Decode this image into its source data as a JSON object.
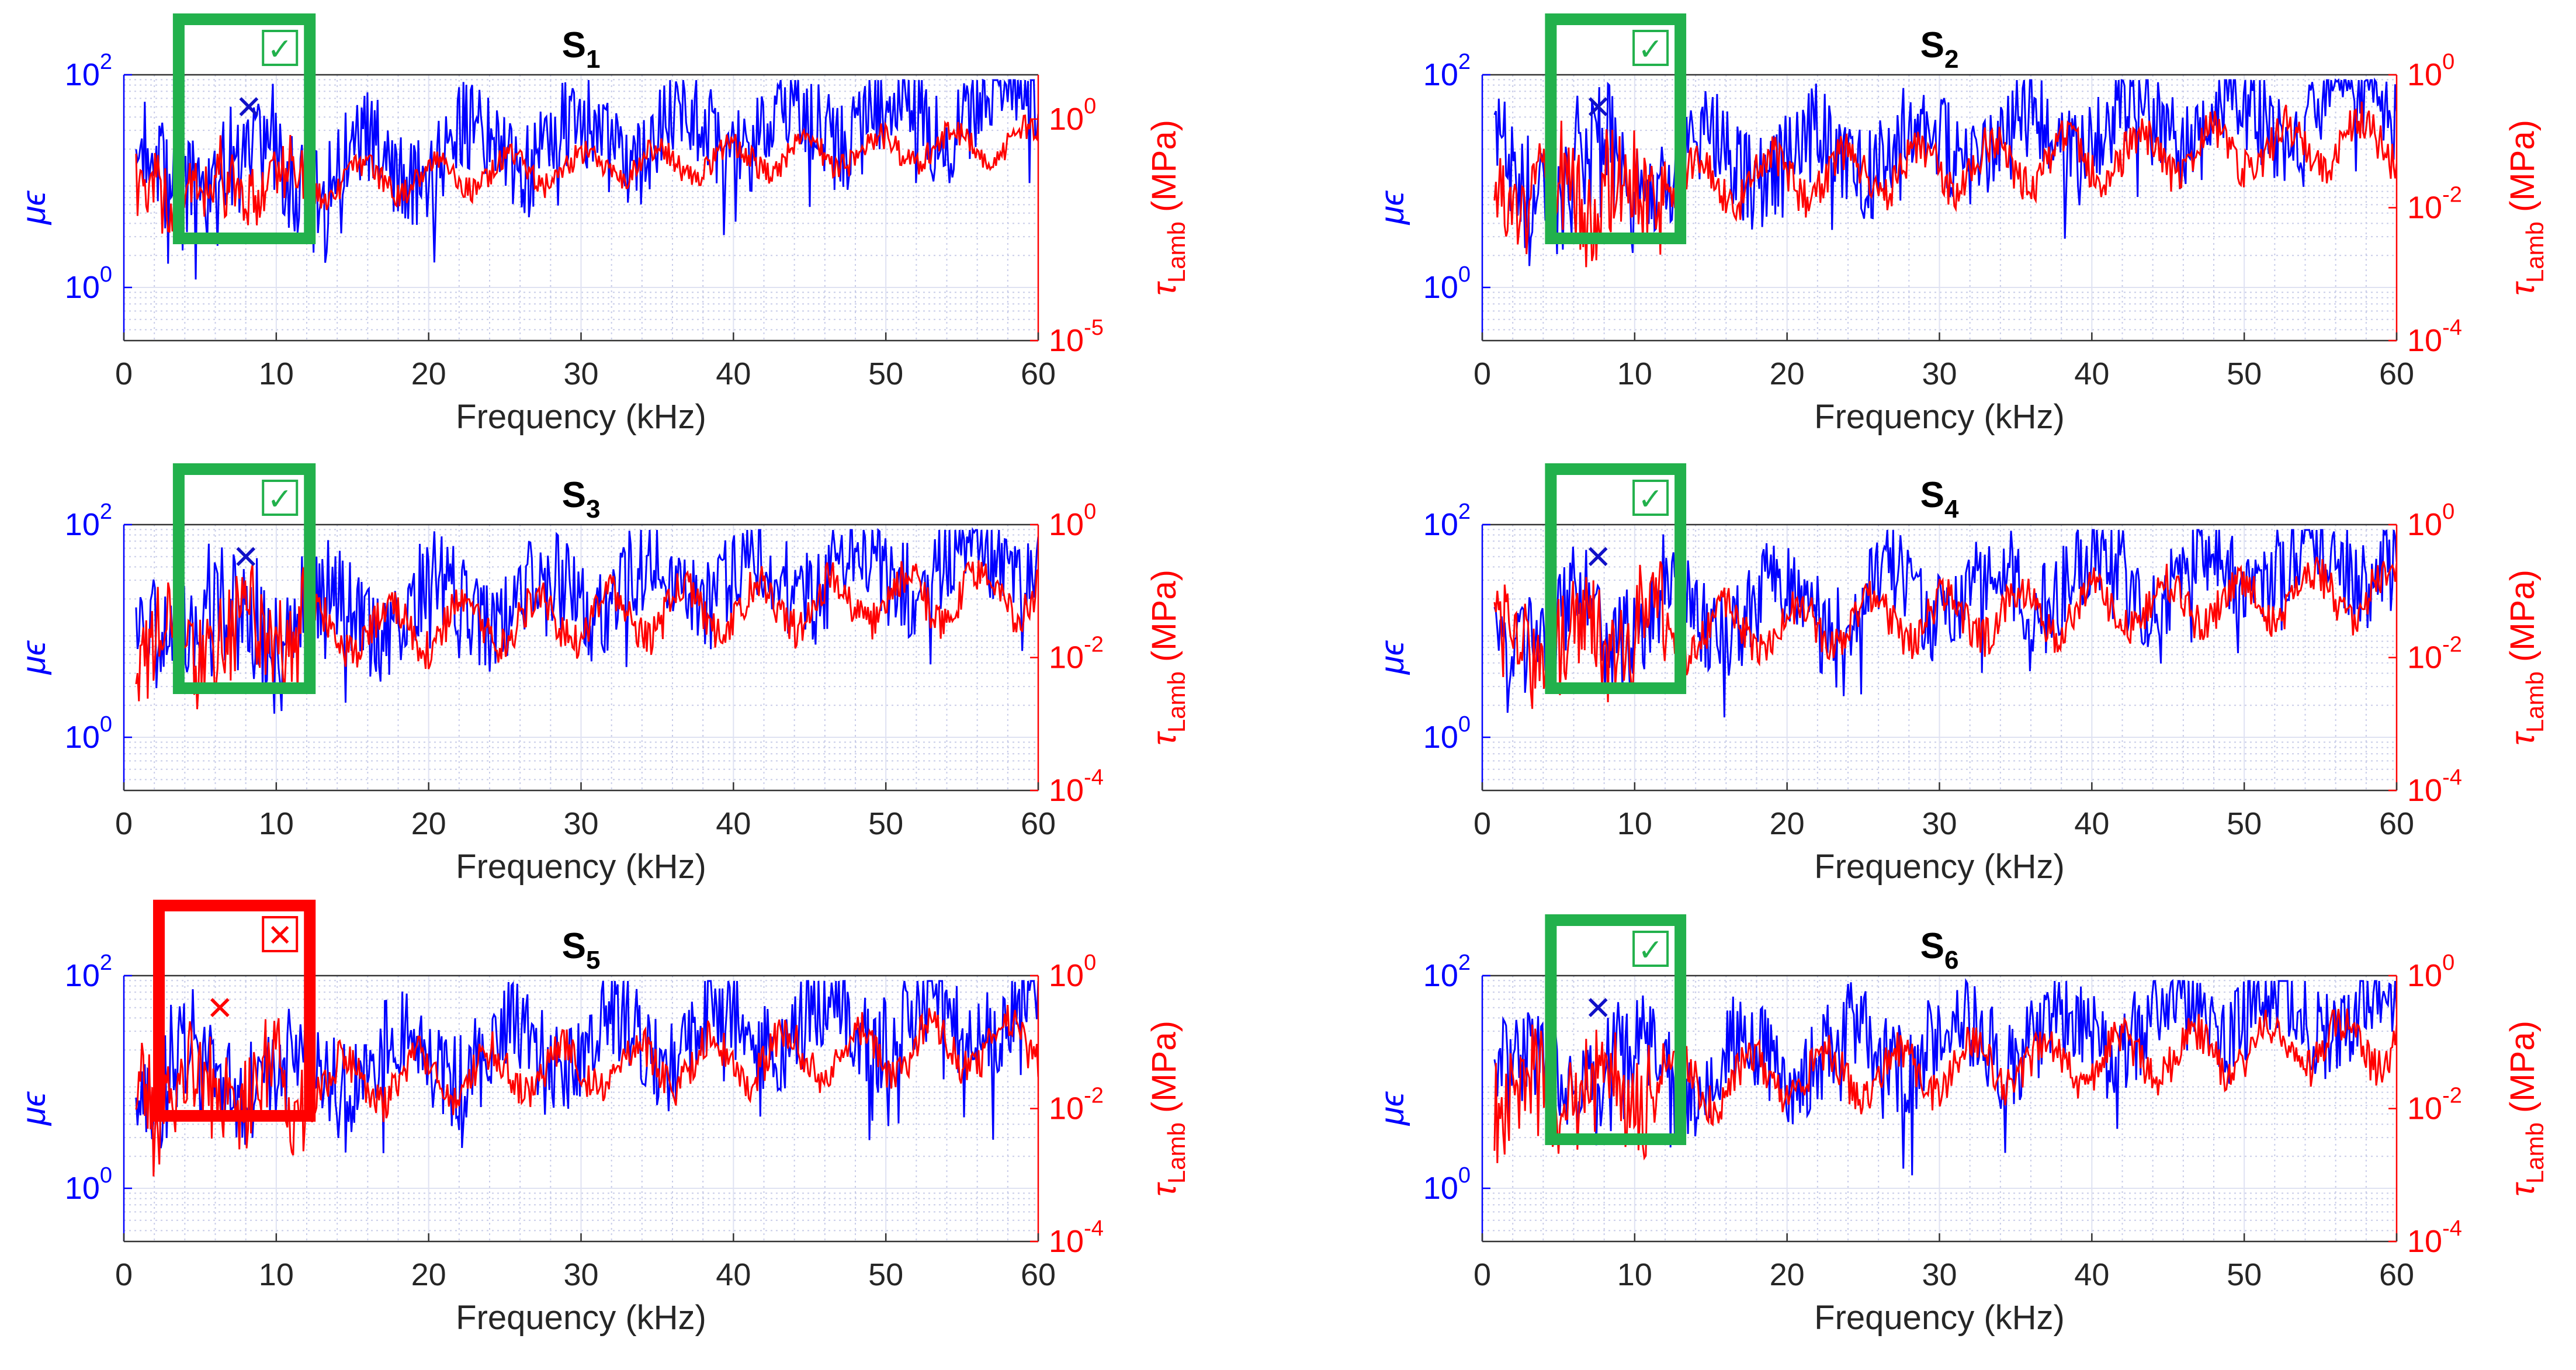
{
  "colors": {
    "left_axis": "#0000ff",
    "right_axis": "#ff0000",
    "pass": "#22b14c",
    "fail": "#ff0000",
    "grid": "#c8cce8",
    "axis": "#333333"
  },
  "common": {
    "xlabel": "Frequency (kHz)",
    "ylabel_left": "μϵ",
    "ylabel_right_symbol": "τ",
    "ylabel_right_sub": "Lamb",
    "ylabel_right_unit": " (MPa)",
    "xticks": [
      "0",
      "10",
      "20",
      "30",
      "40",
      "50",
      "60"
    ],
    "yticks_left": [
      "10",
      "10"
    ],
    "yticks_left_exp": [
      "2",
      "0"
    ],
    "check_mark": "✓",
    "cross_mark": "✕"
  },
  "chart_data": [
    {
      "type": "line",
      "title": "S",
      "title_sub": "1",
      "xlabel": "Frequency (kHz)",
      "xlim": [
        0,
        60
      ],
      "ylabel": "μϵ",
      "ylim_left_log10": [
        -0.5,
        2
      ],
      "ylabel_right": "τLamb (MPa)",
      "ylim_right_log10": [
        -5,
        1
      ],
      "right_ticks": [
        {
          "base": "10",
          "exp": "0",
          "log": 0
        },
        {
          "base": "10",
          "exp": "-5",
          "log": -5
        }
      ],
      "series": [
        {
          "name": "μϵ",
          "axis": "left",
          "color": "#0000ff"
        },
        {
          "name": "τLamb",
          "axis": "right",
          "color": "#ff0000"
        }
      ],
      "annotation": {
        "status": "pass",
        "x_range_khz": [
          3.6,
          12.2
        ],
        "marker": {
          "x_khz": 8.2,
          "symbol": "✕"
        }
      }
    },
    {
      "type": "line",
      "title": "S",
      "title_sub": "2",
      "xlabel": "Frequency (kHz)",
      "xlim": [
        0,
        60
      ],
      "ylabel": "μϵ",
      "ylim_left_log10": [
        -0.5,
        2
      ],
      "ylabel_right": "τLamb (MPa)",
      "ylim_right_log10": [
        -4,
        0
      ],
      "right_ticks": [
        {
          "base": "10",
          "exp": "0",
          "log": 0
        },
        {
          "base": "10",
          "exp": "-2",
          "log": -2
        },
        {
          "base": "10",
          "exp": "-4",
          "log": -4
        }
      ],
      "series": [
        {
          "name": "μϵ",
          "axis": "left",
          "color": "#0000ff"
        },
        {
          "name": "τLamb",
          "axis": "right",
          "color": "#ff0000"
        }
      ],
      "annotation": {
        "status": "pass",
        "x_range_khz": [
          4.5,
          13
        ],
        "marker": {
          "x_khz": 7.6,
          "symbol": "✕"
        }
      }
    },
    {
      "type": "line",
      "title": "S",
      "title_sub": "3",
      "xlabel": "Frequency (kHz)",
      "xlim": [
        0,
        60
      ],
      "ylabel": "μϵ",
      "ylim_left_log10": [
        -0.5,
        2
      ],
      "ylabel_right": "τLamb (MPa)",
      "ylim_right_log10": [
        -4,
        0
      ],
      "right_ticks": [
        {
          "base": "10",
          "exp": "0",
          "log": 0
        },
        {
          "base": "10",
          "exp": "-2",
          "log": -2
        },
        {
          "base": "10",
          "exp": "-4",
          "log": -4
        }
      ],
      "series": [
        {
          "name": "μϵ",
          "axis": "left",
          "color": "#0000ff"
        },
        {
          "name": "τLamb",
          "axis": "right",
          "color": "#ff0000"
        }
      ],
      "annotation": {
        "status": "pass",
        "x_range_khz": [
          3.6,
          12.2
        ],
        "marker": {
          "x_khz": 8.0,
          "symbol": "✕"
        }
      }
    },
    {
      "type": "line",
      "title": "S",
      "title_sub": "4",
      "xlabel": "Frequency (kHz)",
      "xlim": [
        0,
        60
      ],
      "ylabel": "μϵ",
      "ylim_left_log10": [
        -0.5,
        2
      ],
      "ylabel_right": "τLamb (MPa)",
      "ylim_right_log10": [
        -4,
        0
      ],
      "right_ticks": [
        {
          "base": "10",
          "exp": "0",
          "log": 0
        },
        {
          "base": "10",
          "exp": "-2",
          "log": -2
        },
        {
          "base": "10",
          "exp": "-4",
          "log": -4
        }
      ],
      "series": [
        {
          "name": "μϵ",
          "axis": "left",
          "color": "#0000ff"
        },
        {
          "name": "τLamb",
          "axis": "right",
          "color": "#ff0000"
        }
      ],
      "annotation": {
        "status": "pass",
        "x_range_khz": [
          4.5,
          13
        ],
        "marker": {
          "x_khz": 7.6,
          "symbol": "✕"
        }
      }
    },
    {
      "type": "line",
      "title": "S",
      "title_sub": "5",
      "xlabel": "Frequency (kHz)",
      "xlim": [
        0,
        60
      ],
      "ylabel": "μϵ",
      "ylim_left_log10": [
        -0.5,
        2
      ],
      "ylabel_right": "τLamb (MPa)",
      "ylim_right_log10": [
        -4,
        0
      ],
      "right_ticks": [
        {
          "base": "10",
          "exp": "0",
          "log": 0
        },
        {
          "base": "10",
          "exp": "-2",
          "log": -2
        },
        {
          "base": "10",
          "exp": "-4",
          "log": -4
        }
      ],
      "series": [
        {
          "name": "μϵ",
          "axis": "left",
          "color": "#0000ff"
        },
        {
          "name": "τLamb",
          "axis": "right",
          "color": "#ff0000"
        }
      ],
      "annotation": {
        "status": "fail",
        "x_range_khz": [
          2.3,
          12.2
        ],
        "marker": {
          "x_khz": 6.3,
          "symbol": "✕"
        }
      }
    },
    {
      "type": "line",
      "title": "S",
      "title_sub": "6",
      "xlabel": "Frequency (kHz)",
      "xlim": [
        0,
        60
      ],
      "ylabel": "μϵ",
      "ylim_left_log10": [
        -0.5,
        2
      ],
      "ylabel_right": "τLamb (MPa)",
      "ylim_right_log10": [
        -4,
        0
      ],
      "right_ticks": [
        {
          "base": "10",
          "exp": "0",
          "log": 0
        },
        {
          "base": "10",
          "exp": "-2",
          "log": -2
        },
        {
          "base": "10",
          "exp": "-4",
          "log": -4
        }
      ],
      "series": [
        {
          "name": "μϵ",
          "axis": "left",
          "color": "#0000ff"
        },
        {
          "name": "τLamb",
          "axis": "right",
          "color": "#ff0000"
        }
      ],
      "annotation": {
        "status": "pass",
        "x_range_khz": [
          4.5,
          13
        ],
        "marker": {
          "x_khz": 7.6,
          "symbol": "✕"
        }
      }
    }
  ]
}
